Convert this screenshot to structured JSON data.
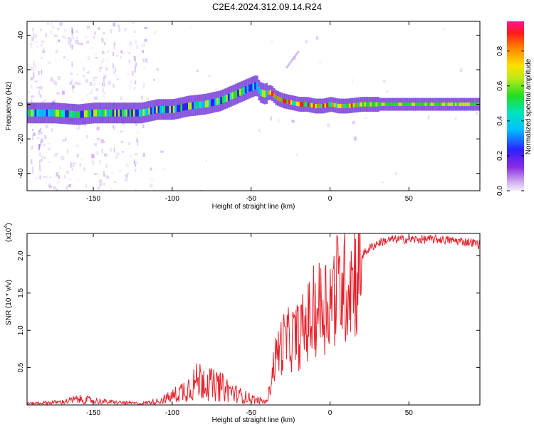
{
  "title": "C2E4.2024.312.09.14.R24",
  "chart_data": [
    {
      "type": "heatmap",
      "panel": "top",
      "xlabel": "Height of straight line (km)",
      "ylabel": "Frequency (Hz)",
      "xlim": [
        -192,
        95
      ],
      "ylim": [
        -50,
        48
      ],
      "xticks": [
        -150,
        -100,
        -50,
        0,
        50
      ],
      "yticks": [
        -40,
        -20,
        0,
        20,
        40
      ],
      "colorbar": {
        "label": "Normalized spectral amplitude",
        "range": [
          0,
          0.97
        ],
        "ticks": [
          0.0,
          0.2,
          0.4,
          0.6,
          0.8
        ],
        "tick_labels": [
          "0.0",
          "0.2",
          "0.4",
          "0.6",
          "0.8"
        ]
      },
      "ridge": {
        "x": [
          -190,
          -175,
          -160,
          -150,
          -140,
          -130,
          -120,
          -110,
          -100,
          -90,
          -80,
          -70,
          -65,
          -60,
          -55,
          -50,
          -47,
          -45,
          -42,
          -38,
          -35,
          -30,
          -25,
          -20,
          -15,
          -10,
          -5,
          0,
          5,
          10,
          20,
          30,
          50,
          70,
          95
        ],
        "y": [
          -5,
          -5,
          -6,
          -5,
          -5,
          -5,
          -5,
          -3,
          -3,
          -1,
          0,
          2,
          4,
          6,
          8,
          10,
          11,
          7,
          6,
          7,
          4,
          2,
          1,
          0,
          0,
          -1,
          -1,
          0,
          -1,
          -1,
          0,
          0,
          0,
          0,
          0
        ]
      }
    },
    {
      "type": "line",
      "panel": "bottom",
      "xlabel": "Height of straight line (km)",
      "ylabel": "SNR (10 * v/v)",
      "multiplier_label": "(x10",
      "multiplier_exponent": "4",
      "xlim": [
        -192,
        95
      ],
      "ylim": [
        0,
        2.3
      ],
      "xticks": [
        -150,
        -100,
        -50,
        0,
        50
      ],
      "yticks": [
        0.5,
        1.0,
        1.5,
        2.0
      ],
      "ytick_labels": [
        "0.5",
        "1.0",
        "1.5",
        "2.0"
      ],
      "series": [
        {
          "name": "SNR",
          "color": "#e8202a",
          "x": [
            -192,
            -170,
            -160,
            -150,
            -140,
            -130,
            -120,
            -110,
            -105,
            -100,
            -95,
            -90,
            -85,
            -80,
            -75,
            -70,
            -65,
            -60,
            -55,
            -50,
            -45,
            -40,
            -38,
            -36,
            -33,
            -30,
            -25,
            -20,
            -15,
            -10,
            -5,
            0,
            5,
            10,
            15,
            20,
            25,
            30,
            35,
            40,
            50,
            60,
            70,
            80,
            90,
            95
          ],
          "y": [
            0.02,
            0.04,
            0.08,
            0.06,
            0.04,
            0.03,
            0.02,
            0.05,
            0.08,
            0.12,
            0.18,
            0.25,
            0.32,
            0.38,
            0.28,
            0.26,
            0.22,
            0.16,
            0.12,
            0.09,
            0.06,
            0.04,
            0.25,
            0.55,
            0.78,
            0.9,
            0.95,
            1.0,
            1.15,
            1.35,
            1.45,
            1.55,
            1.7,
            1.75,
            1.9,
            2.0,
            2.1,
            2.17,
            2.2,
            2.22,
            2.22,
            2.22,
            2.22,
            2.2,
            2.18,
            2.15
          ]
        }
      ]
    }
  ]
}
